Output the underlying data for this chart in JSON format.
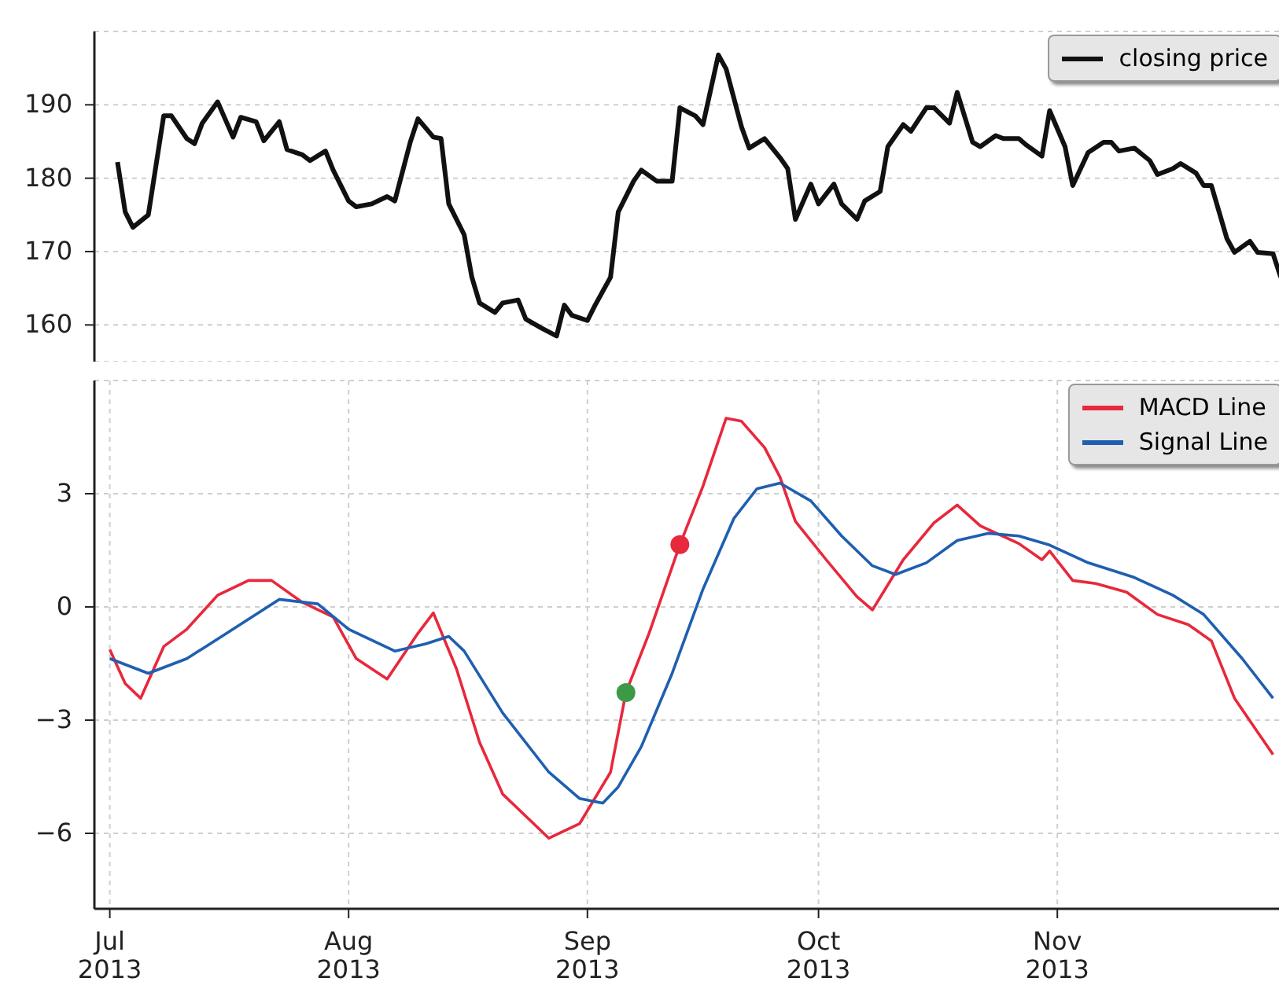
{
  "chart_data": [
    {
      "type": "line",
      "xlim": [
        "2013-06-29",
        "2013-12-01"
      ],
      "xticks": [
        {
          "value": "2013-07-01",
          "label": null
        },
        {
          "value": "2013-08-01",
          "label": null
        },
        {
          "value": "2013-09-01",
          "label": null
        },
        {
          "value": "2013-10-01",
          "label": null
        },
        {
          "value": "2013-11-01",
          "label": null
        }
      ],
      "ylim": [
        155,
        200
      ],
      "yticks": [
        160,
        170,
        180,
        190
      ],
      "tick_labels": "y",
      "grid": true,
      "legend": "top right",
      "series": [
        {
          "name": "closing price",
          "color": "#111111",
          "x": [
            "2013-07-02",
            "2013-07-03",
            "2013-07-04",
            "2013-07-06",
            "2013-07-08",
            "2013-07-09",
            "2013-07-11",
            "2013-07-12",
            "2013-07-13",
            "2013-07-15",
            "2013-07-17",
            "2013-07-18",
            "2013-07-20",
            "2013-07-21",
            "2013-07-23",
            "2013-07-24",
            "2013-07-26",
            "2013-07-27",
            "2013-07-29",
            "2013-07-30",
            "2013-08-01",
            "2013-08-02",
            "2013-08-04",
            "2013-08-06",
            "2013-08-07",
            "2013-08-09",
            "2013-08-10",
            "2013-08-12",
            "2013-08-13",
            "2013-08-14",
            "2013-08-16",
            "2013-08-17",
            "2013-08-18",
            "2013-08-20",
            "2013-08-21",
            "2013-08-23",
            "2013-08-24",
            "2013-08-26",
            "2013-08-28",
            "2013-08-29",
            "2013-08-30",
            "2013-09-01",
            "2013-09-02",
            "2013-09-04",
            "2013-09-05",
            "2013-09-07",
            "2013-09-08",
            "2013-09-10",
            "2013-09-12",
            "2013-09-13",
            "2013-09-15",
            "2013-09-16",
            "2013-09-18",
            "2013-09-19",
            "2013-09-21",
            "2013-09-22",
            "2013-09-24",
            "2013-09-26",
            "2013-09-27",
            "2013-09-28",
            "2013-09-30",
            "2013-10-01",
            "2013-10-03",
            "2013-10-04",
            "2013-10-06",
            "2013-10-07",
            "2013-10-09",
            "2013-10-10",
            "2013-10-12",
            "2013-10-13",
            "2013-10-15",
            "2013-10-16",
            "2013-10-18",
            "2013-10-19",
            "2013-10-21",
            "2013-10-22",
            "2013-10-24",
            "2013-10-25",
            "2013-10-27",
            "2013-10-28",
            "2013-10-30",
            "2013-10-31",
            "2013-11-02",
            "2013-11-03",
            "2013-11-05",
            "2013-11-07",
            "2013-11-08",
            "2013-11-09",
            "2013-11-11",
            "2013-11-13",
            "2013-11-14",
            "2013-11-16",
            "2013-11-17",
            "2013-11-19",
            "2013-11-20",
            "2013-11-21",
            "2013-11-23",
            "2013-11-24",
            "2013-11-26",
            "2013-11-27",
            "2013-11-29",
            "2013-11-30"
          ],
          "values": [
            182.2,
            175.4,
            173.3,
            175,
            188.5,
            188.5,
            185.4,
            184.7,
            187.5,
            190.4,
            185.6,
            188.3,
            187.7,
            185.1,
            187.7,
            183.9,
            183.2,
            182.4,
            183.7,
            181.1,
            176.9,
            176.1,
            176.5,
            177.5,
            176.9,
            184.9,
            188.1,
            185.6,
            185.4,
            176.5,
            172.3,
            166.5,
            163,
            161.7,
            163,
            163.4,
            160.8,
            159.6,
            158.5,
            162.7,
            161.3,
            160.6,
            162.7,
            166.5,
            175.4,
            179.6,
            181.1,
            179.6,
            179.6,
            189.6,
            188.5,
            187.3,
            196.8,
            194.9,
            187,
            184.1,
            185.4,
            182.8,
            181.3,
            174.4,
            179.2,
            176.5,
            179.2,
            176.5,
            174.4,
            176.9,
            178.2,
            184.3,
            187.3,
            186.4,
            189.6,
            189.6,
            187.5,
            191.7,
            184.9,
            184.3,
            185.8,
            185.4,
            185.4,
            184.5,
            183,
            189.2,
            184.3,
            179,
            183.5,
            184.9,
            184.9,
            183.7,
            184.1,
            182.4,
            180.5,
            181.3,
            182,
            180.7,
            179,
            179,
            171.8,
            169.9,
            171.4,
            169.9,
            169.7,
            166.5
          ]
        }
      ]
    },
    {
      "type": "line",
      "xlim": [
        "2013-06-29",
        "2013-12-01"
      ],
      "xticks": [
        {
          "value": "2013-07-01",
          "label": "Jul\n2013"
        },
        {
          "value": "2013-08-01",
          "label": "Aug\n2013"
        },
        {
          "value": "2013-09-01",
          "label": "Sep\n2013"
        },
        {
          "value": "2013-10-01",
          "label": "Oct\n2013"
        },
        {
          "value": "2013-11-01",
          "label": "Nov\n2013"
        }
      ],
      "ylim": [
        -8,
        6
      ],
      "yticks": [
        3,
        0,
        {
          "value": -3,
          "label": "−3"
        },
        {
          "value": -6,
          "label": "−6"
        }
      ],
      "grid": true,
      "legend": "top right",
      "series": [
        {
          "name": "MACD Line",
          "color": "#e8283c",
          "x": [
            "2013-07-01",
            "2013-07-03",
            "2013-07-05",
            "2013-07-08",
            "2013-07-11",
            "2013-07-15",
            "2013-07-19",
            "2013-07-22",
            "2013-07-26",
            "2013-07-30",
            "2013-08-02",
            "2013-08-06",
            "2013-08-10",
            "2013-08-12",
            "2013-08-15",
            "2013-08-18",
            "2013-08-21",
            "2013-08-27",
            "2013-08-31",
            "2013-09-04",
            "2013-09-06",
            "2013-09-09",
            "2013-09-13",
            "2013-09-16",
            "2013-09-19",
            "2013-09-21",
            "2013-09-24",
            "2013-09-26",
            "2013-09-28",
            "2013-10-02",
            "2013-10-06",
            "2013-10-08",
            "2013-10-12",
            "2013-10-16",
            "2013-10-19",
            "2013-10-22",
            "2013-10-27",
            "2013-10-30",
            "2013-10-31",
            "2013-11-03",
            "2013-11-06",
            "2013-11-10",
            "2013-11-14",
            "2013-11-18",
            "2013-11-21",
            "2013-11-24",
            "2013-11-27",
            "2013-11-29"
          ],
          "values": [
            -1.13,
            -2.03,
            -2.42,
            -1.05,
            -0.59,
            0.31,
            0.7,
            0.7,
            0.12,
            -0.27,
            -1.37,
            -1.91,
            -0.7,
            -0.16,
            -1.64,
            -3.59,
            -4.96,
            -6.13,
            -5.74,
            -4.38,
            -2.27,
            -0.7,
            1.65,
            3.2,
            5.0,
            4.92,
            4.22,
            3.44,
            2.27,
            1.25,
            0.27,
            -0.08,
            1.25,
            2.23,
            2.7,
            2.15,
            1.68,
            1.25,
            1.48,
            0.7,
            0.62,
            0.39,
            -0.2,
            -0.47,
            -0.9,
            -2.42,
            -3.32,
            -3.91
          ]
        },
        {
          "name": "Signal Line",
          "color": "#1f5fb0",
          "x": [
            "2013-07-01",
            "2013-07-06",
            "2013-07-11",
            "2013-07-17",
            "2013-07-23",
            "2013-07-28",
            "2013-08-01",
            "2013-08-07",
            "2013-08-11",
            "2013-08-14",
            "2013-08-16",
            "2013-08-21",
            "2013-08-27",
            "2013-08-31",
            "2013-09-03",
            "2013-09-05",
            "2013-09-08",
            "2013-09-12",
            "2013-09-16",
            "2013-09-20",
            "2013-09-23",
            "2013-09-26",
            "2013-09-30",
            "2013-10-04",
            "2013-10-08",
            "2013-10-11",
            "2013-10-15",
            "2013-10-19",
            "2013-10-23",
            "2013-10-27",
            "2013-10-31",
            "2013-11-05",
            "2013-11-11",
            "2013-11-16",
            "2013-11-20",
            "2013-11-25",
            "2013-11-29"
          ],
          "values": [
            -1.37,
            -1.76,
            -1.37,
            -0.59,
            0.2,
            0.08,
            -0.59,
            -1.17,
            -0.98,
            -0.78,
            -1.17,
            -2.81,
            -4.38,
            -5.08,
            -5.2,
            -4.77,
            -3.7,
            -1.76,
            0.47,
            2.34,
            3.13,
            3.28,
            2.81,
            1.88,
            1.09,
            0.86,
            1.17,
            1.76,
            1.95,
            1.88,
            1.64,
            1.17,
            0.78,
            0.31,
            -0.2,
            -1.37,
            -2.42
          ]
        },
        {
          "type": "scatter",
          "marker": "circle",
          "color": "#3c9a46",
          "x": [
            "2013-09-06"
          ],
          "values": [
            -2.27
          ]
        },
        {
          "type": "scatter",
          "marker": "circle",
          "color": "#e8283c",
          "x": [
            "2013-09-13"
          ],
          "values": [
            1.65
          ]
        }
      ]
    }
  ]
}
